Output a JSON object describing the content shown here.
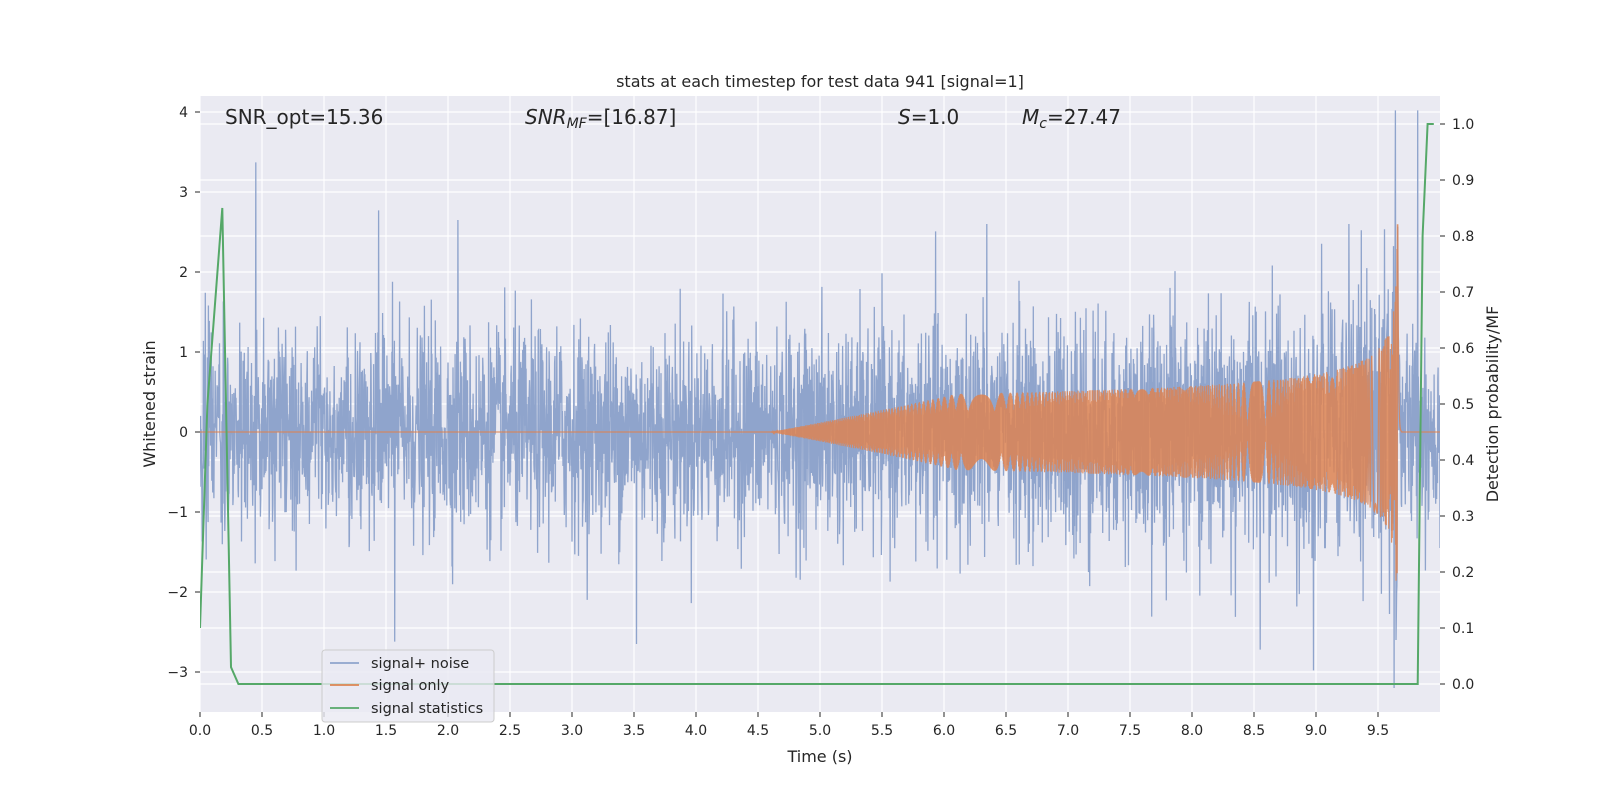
{
  "chart_data": {
    "type": "line",
    "title": "stats at each timestep for test data 941 [signal=1]",
    "xlabel": "Time (s)",
    "ylabel_left": "Whitened strain",
    "ylabel_right": "Detection probability/MF",
    "xlim": [
      0,
      10
    ],
    "ylim_left": [
      -3.5,
      4.2
    ],
    "ylim_right": [
      -0.05,
      1.05
    ],
    "x_ticks": [
      0,
      0.5,
      1,
      1.5,
      2,
      2.5,
      3,
      3.5,
      4,
      4.5,
      5,
      5.5,
      6,
      6.5,
      7,
      7.5,
      8,
      8.5,
      9,
      9.5
    ],
    "x_tick_labels": [
      "0.0",
      "0.5",
      "1.0",
      "1.5",
      "2.0",
      "2.5",
      "3.0",
      "3.5",
      "4.0",
      "4.5",
      "5.0",
      "5.5",
      "6.0",
      "6.5",
      "7.0",
      "7.5",
      "8.0",
      "8.5",
      "9.0",
      "9.5"
    ],
    "y_left_ticks": [
      -3,
      -2,
      -1,
      0,
      1,
      2,
      3,
      4
    ],
    "y_left_tick_labels": [
      "−3",
      "−2",
      "−1",
      "0",
      "1",
      "2",
      "3",
      "4"
    ],
    "y_right_ticks": [
      0,
      0.1,
      0.2,
      0.3,
      0.4,
      0.5,
      0.6,
      0.7,
      0.8,
      0.9,
      1.0
    ],
    "y_right_tick_labels": [
      "0.0",
      "0.1",
      "0.2",
      "0.3",
      "0.4",
      "0.5",
      "0.6",
      "0.7",
      "0.8",
      "0.9",
      "1.0"
    ],
    "grid": true,
    "legend_position": "bottom-left",
    "annotations": {
      "snr_opt": "SNR_opt=15.36",
      "snr_mf_base": "SNR",
      "snr_mf_sub": "MF",
      "snr_mf_rest": "=[16.87]",
      "s_var": "S",
      "s_rest": "=1.0",
      "mc_var": "M",
      "mc_sub": "c",
      "mc_rest": "=27.47"
    },
    "series": [
      {
        "name": "signal+ noise",
        "color": "#8fa4cc",
        "axis": "left",
        "envelope": {
          "amplitude": 1.15,
          "max_excursion": 4.05,
          "min_excursion": -3.2
        },
        "spikes": [
          {
            "x": 0.45,
            "y": 3.37
          },
          {
            "x": 1.44,
            "y": 2.77
          },
          {
            "x": 2.08,
            "y": 2.65
          },
          {
            "x": 3.52,
            "y": -2.65
          },
          {
            "x": 1.57,
            "y": -2.62
          },
          {
            "x": 8.55,
            "y": -2.72
          },
          {
            "x": 8.98,
            "y": -2.98
          },
          {
            "x": 9.64,
            "y": 4.02
          },
          {
            "x": 9.63,
            "y": -3.2
          },
          {
            "x": 9.82,
            "y": 4.02
          }
        ]
      },
      {
        "name": "signal only",
        "color": "#dd8452",
        "axis": "left",
        "chirp": {
          "start": 4.6,
          "merger": 9.66,
          "peak_amplitude": 2.6
        }
      },
      {
        "name": "signal statistics",
        "color": "#55a868",
        "axis": "right",
        "x": [
          0.0,
          0.06,
          0.18,
          0.25,
          0.31,
          9.82,
          9.86,
          9.9,
          9.95
        ],
        "y": [
          0.1,
          0.5,
          0.85,
          0.03,
          0.0,
          0.0,
          0.8,
          1.0,
          1.0
        ]
      }
    ]
  }
}
